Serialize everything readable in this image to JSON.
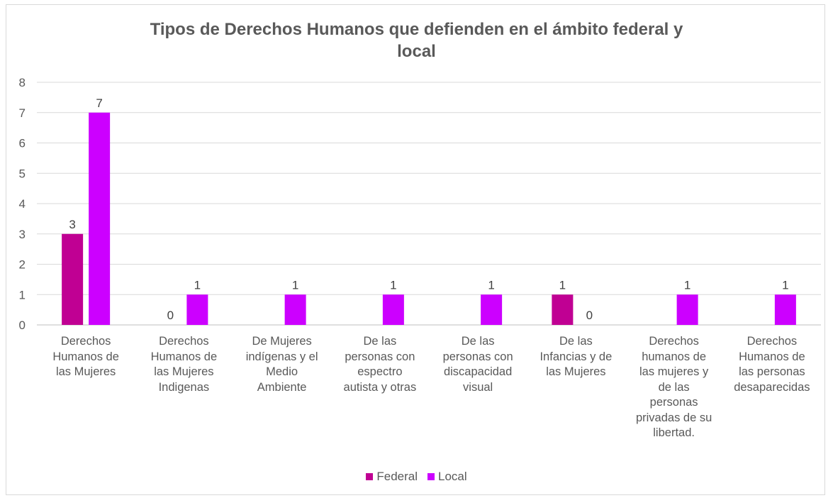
{
  "chart_data": {
    "type": "bar",
    "title": "Tipos de Derechos Humanos que defienden en el ámbito federal y local",
    "title_lines": [
      "Tipos de Derechos Humanos que defienden en el ámbito federal y",
      "local"
    ],
    "categories": [
      [
        "Derechos",
        "Humanos de",
        "las Mujeres"
      ],
      [
        "Derechos",
        "Humanos de",
        "las Mujeres",
        "Indigenas"
      ],
      [
        "De Mujeres",
        "indígenas y el",
        "Medio",
        "Ambiente"
      ],
      [
        "De las",
        "personas con",
        "espectro",
        "autista y otras"
      ],
      [
        "De las",
        "personas con",
        "discapacidad",
        "visual"
      ],
      [
        "De las",
        "Infancias y de",
        "las Mujeres"
      ],
      [
        "Derechos",
        "humanos de",
        "las mujeres y",
        "de las",
        "personas",
        "privadas de su",
        "libertad."
      ],
      [
        "Derechos",
        "Humanos de",
        "las personas",
        "desaparecidas"
      ]
    ],
    "series": [
      {
        "name": "Federal",
        "color": "#c00093",
        "values": [
          3,
          0,
          null,
          null,
          null,
          1,
          null,
          null
        ]
      },
      {
        "name": "Local",
        "color": "#cc00ff",
        "values": [
          7,
          1,
          1,
          1,
          1,
          0,
          1,
          1
        ]
      }
    ],
    "ylim": [
      0,
      8
    ],
    "yticks": [
      "0",
      "1",
      "2",
      "3",
      "4",
      "5",
      "6",
      "7",
      "8"
    ],
    "grid": true,
    "legend_position": "bottom"
  }
}
